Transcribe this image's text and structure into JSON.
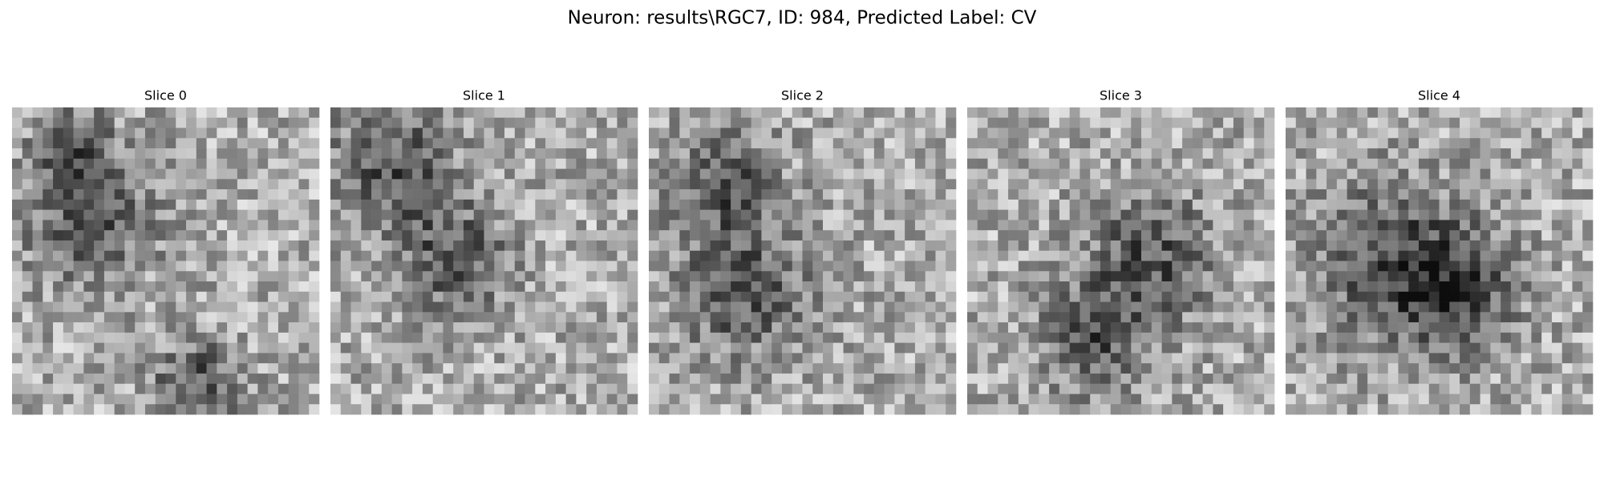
{
  "header": {
    "title": "Neuron: results\\RGC7, ID: 984, Predicted Label: CV"
  },
  "slices": [
    {
      "title": "Slice 0"
    },
    {
      "title": "Slice 1"
    },
    {
      "title": "Slice 2"
    },
    {
      "title": "Slice 3"
    },
    {
      "title": "Slice 4"
    }
  ]
}
